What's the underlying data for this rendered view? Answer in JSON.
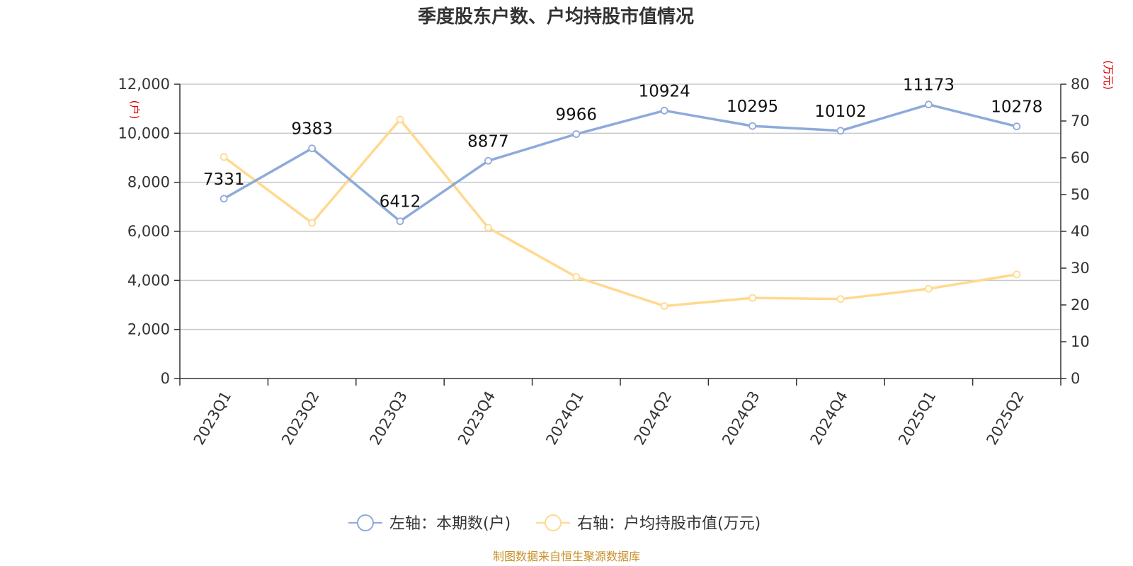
{
  "chart_data": {
    "type": "line",
    "title": "季度股东户数、户均持股市值情况",
    "categories": [
      "2023Q1",
      "2023Q2",
      "2023Q3",
      "2023Q4",
      "2024Q1",
      "2024Q2",
      "2024Q3",
      "2024Q4",
      "2025Q1",
      "2025Q2"
    ],
    "series": [
      {
        "name": "左轴：本期数(户)",
        "axis": "left",
        "color": "#8eaadb",
        "values": [
          7331,
          9383,
          6412,
          8877,
          9966,
          10924,
          10295,
          10102,
          11173,
          10278
        ],
        "data_labels": [
          "7331",
          "9383",
          "6412",
          "8877",
          "9966",
          "10924",
          "10295",
          "10102",
          "11173",
          "10278"
        ]
      },
      {
        "name": "右轴：户均持股市值(万元)",
        "axis": "right",
        "color": "#ffd98f",
        "values": [
          60.2,
          42.3,
          70.4,
          41.0,
          27.6,
          19.7,
          21.9,
          21.6,
          24.4,
          28.3
        ]
      }
    ],
    "y_left": {
      "unit": "(户)",
      "ylim": [
        0,
        12000
      ],
      "ticks": [
        "0",
        "2,000",
        "4,000",
        "6,000",
        "8,000",
        "10,000",
        "12,000"
      ]
    },
    "y_right": {
      "unit": "(万元)",
      "ylim": [
        0,
        80
      ],
      "ticks": [
        "0",
        "10",
        "20",
        "30",
        "40",
        "50",
        "60",
        "70",
        "80"
      ]
    },
    "grid": true,
    "legend_position": "bottom-center"
  },
  "footer": {
    "source": "制图数据来自恒生聚源数据库"
  }
}
